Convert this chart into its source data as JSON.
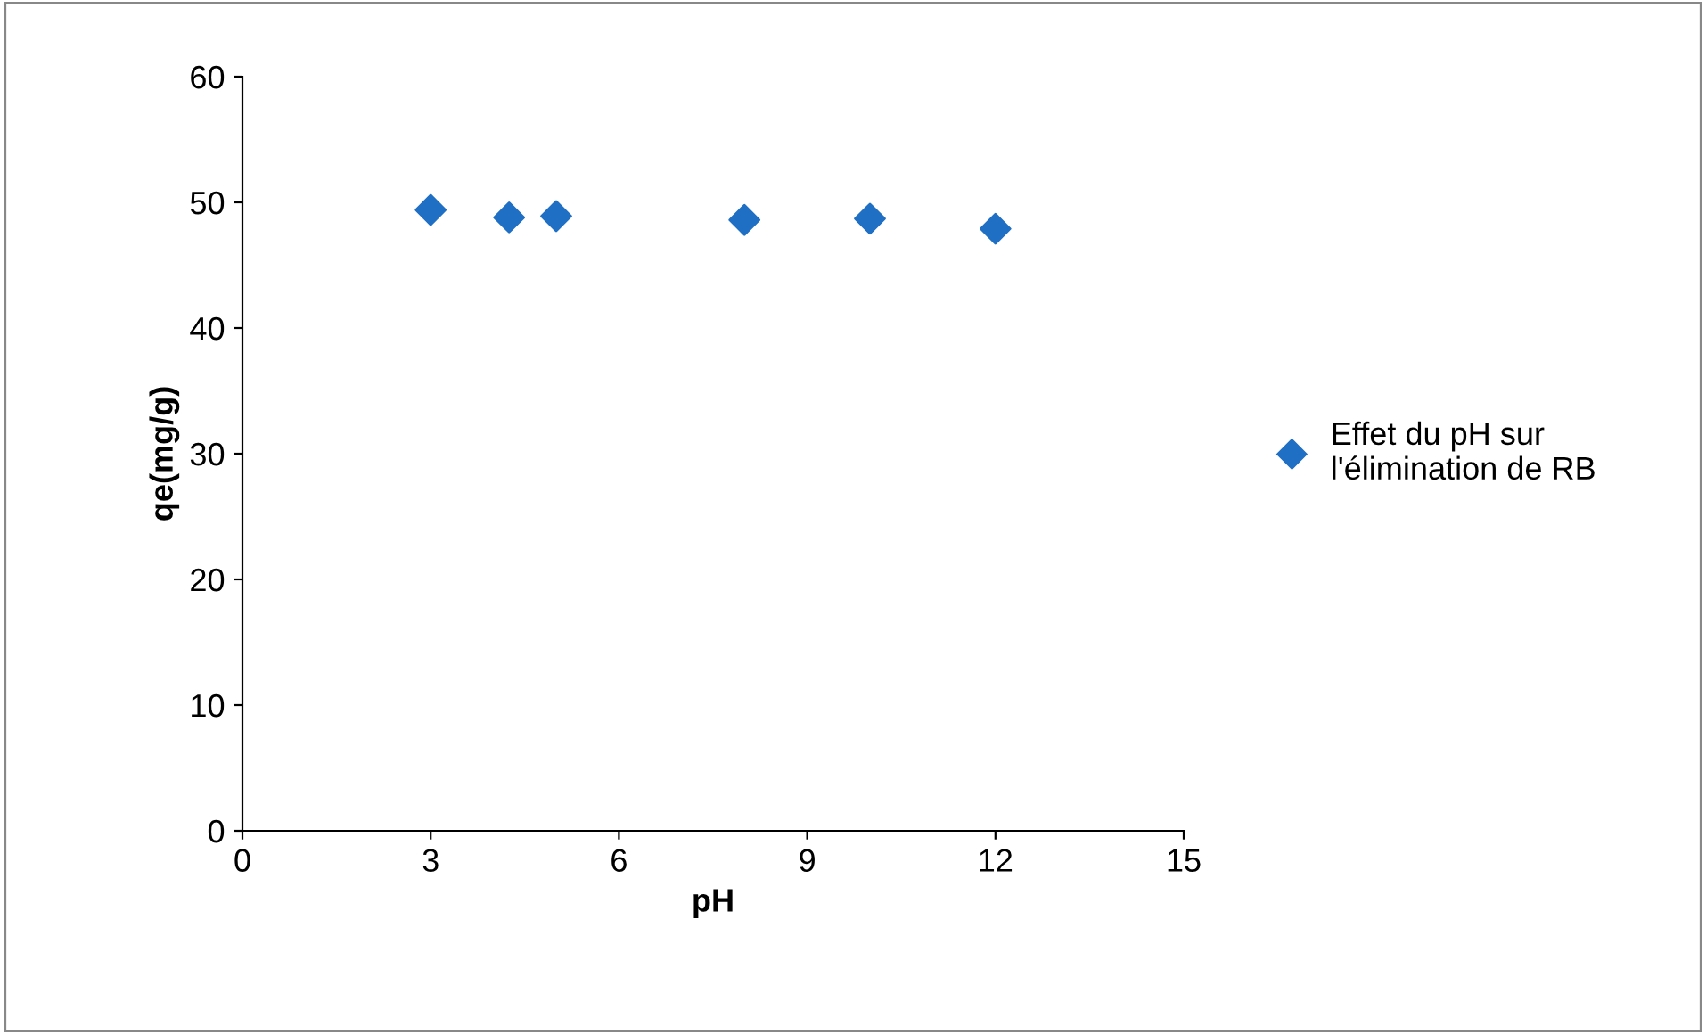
{
  "chart_data": {
    "type": "scatter",
    "xlabel": "pH",
    "ylabel": "qe(mg/g)",
    "x": [
      3,
      4.25,
      5,
      8,
      10,
      12
    ],
    "series": [
      {
        "name": "Effet du pH sur\nl'élimination de RB",
        "color": "#1f6fc5",
        "values": [
          49.4,
          48.8,
          48.9,
          48.6,
          48.7,
          47.9
        ]
      }
    ],
    "xlim": [
      0,
      15
    ],
    "xticks": [
      0,
      3,
      6,
      9,
      12,
      15
    ],
    "ylim": [
      0,
      60
    ],
    "yticks": [
      0,
      10,
      20,
      30,
      40,
      50,
      60
    ],
    "marker": "diamond",
    "legend": "right",
    "grid": false
  }
}
